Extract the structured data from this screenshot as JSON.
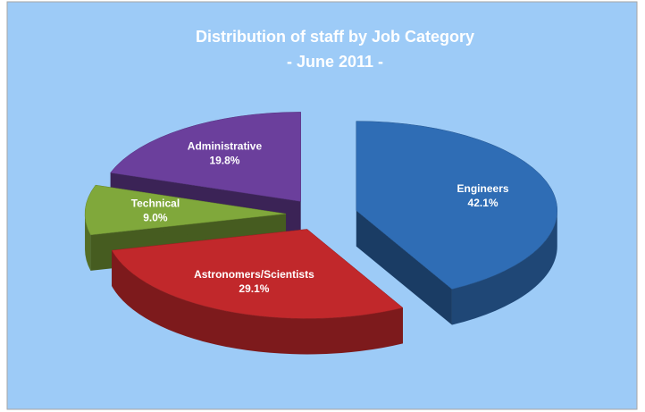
{
  "chart_data": {
    "type": "pie",
    "title": "Distribution of staff by Job Category",
    "subtitle": "- June 2011 -",
    "categories": [
      "Engineers",
      "Astronomers/Scientists",
      "Technical",
      "Administrative"
    ],
    "values": [
      42.1,
      29.1,
      9.0,
      19.8
    ],
    "value_labels": [
      "42.1%",
      "29.1%",
      "9.0%",
      "19.8%"
    ],
    "colors": [
      "#2f6db5",
      "#c1282b",
      "#80a83b",
      "#6b3f9c"
    ]
  }
}
